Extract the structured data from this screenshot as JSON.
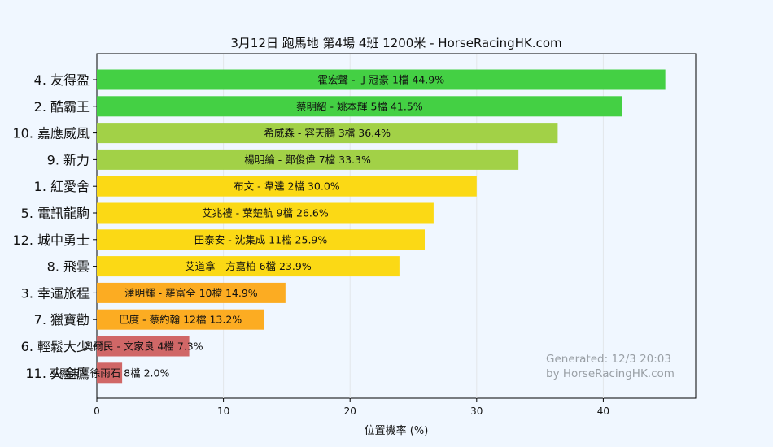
{
  "chart_data": {
    "type": "bar",
    "orientation": "horizontal",
    "title": "3月12日  跑馬地  第4場  4班  1200米 - HorseRacingHK.com",
    "xlabel": "位置機率 (%)",
    "ylabel": "",
    "xlim": [
      0,
      47.3
    ],
    "xticks": [
      0,
      10,
      20,
      30,
      40
    ],
    "grid": "vertical",
    "categories": [
      "4. 友得盈",
      "2. 酷霸王",
      "10. 嘉應威風",
      "9. 新力",
      "1. 紅愛舍",
      "5. 電訊龍駒",
      "12. 城中勇士",
      "8. 飛雲",
      "3. 幸運旅程",
      "7. 獵寶勸",
      "6. 輕鬆大少",
      "11. 火金鷹"
    ],
    "values": [
      44.9,
      41.5,
      36.4,
      33.3,
      30.0,
      26.6,
      25.9,
      23.9,
      14.9,
      13.2,
      7.3,
      2.0
    ],
    "bar_labels": [
      "霍宏聲 - 丁冠豪 1檔  44.9%",
      "蔡明紹 - 姚本輝 5檔  41.5%",
      "希威森 - 容天鵬 3檔  36.4%",
      "楊明綸 - 鄭俊偉 7檔  33.3%",
      "布文 - 韋達 2檔  30.0%",
      "艾兆禮 - 葉楚航 9檔  26.6%",
      "田泰安 - 沈集成 11檔  25.9%",
      "艾道拿 - 方嘉柏 6檔  23.9%",
      "潘明輝 - 羅富全 10檔  14.9%",
      "巴度 - 蔡約翰 12檔  13.2%",
      "奧爾民 - 文家良 4檔  7.3%",
      "巫顯東 - 徐雨石 8檔  2.0%"
    ],
    "colors": [
      "#44d044",
      "#44d044",
      "#a2d147",
      "#a2d147",
      "#fbd915",
      "#fbd915",
      "#fbd915",
      "#fbd915",
      "#fcac22",
      "#fcac22",
      "#d06767",
      "#d06767"
    ],
    "watermark": [
      "Generated: 12/3 20:03",
      "by HorseRacingHK.com"
    ]
  }
}
